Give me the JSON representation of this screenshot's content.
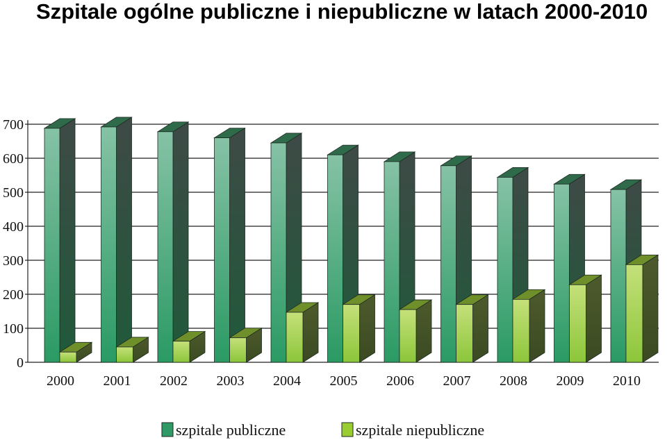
{
  "chart_data": {
    "type": "bar",
    "title": "Szpitale ogólne publiczne i niepubliczne w latach 2000-2010",
    "categories": [
      "2000",
      "2001",
      "2002",
      "2003",
      "2004",
      "2005",
      "2006",
      "2007",
      "2008",
      "2009",
      "2010"
    ],
    "series": [
      {
        "name": "szpitale publiczne",
        "values": [
          688,
          692,
          678,
          660,
          645,
          610,
          590,
          578,
          544,
          524,
          508
        ],
        "color": "#3a9a6a"
      },
      {
        "name": "szpitale niepubliczne",
        "values": [
          30,
          45,
          62,
          72,
          147,
          170,
          155,
          170,
          185,
          228,
          287
        ],
        "color": "#9acd32"
      }
    ],
    "ylim": [
      0,
      700
    ],
    "yticks": [
      "0",
      "100",
      "200",
      "300",
      "400",
      "500",
      "600",
      "700"
    ],
    "grid": true,
    "legend_position": "bottom"
  }
}
